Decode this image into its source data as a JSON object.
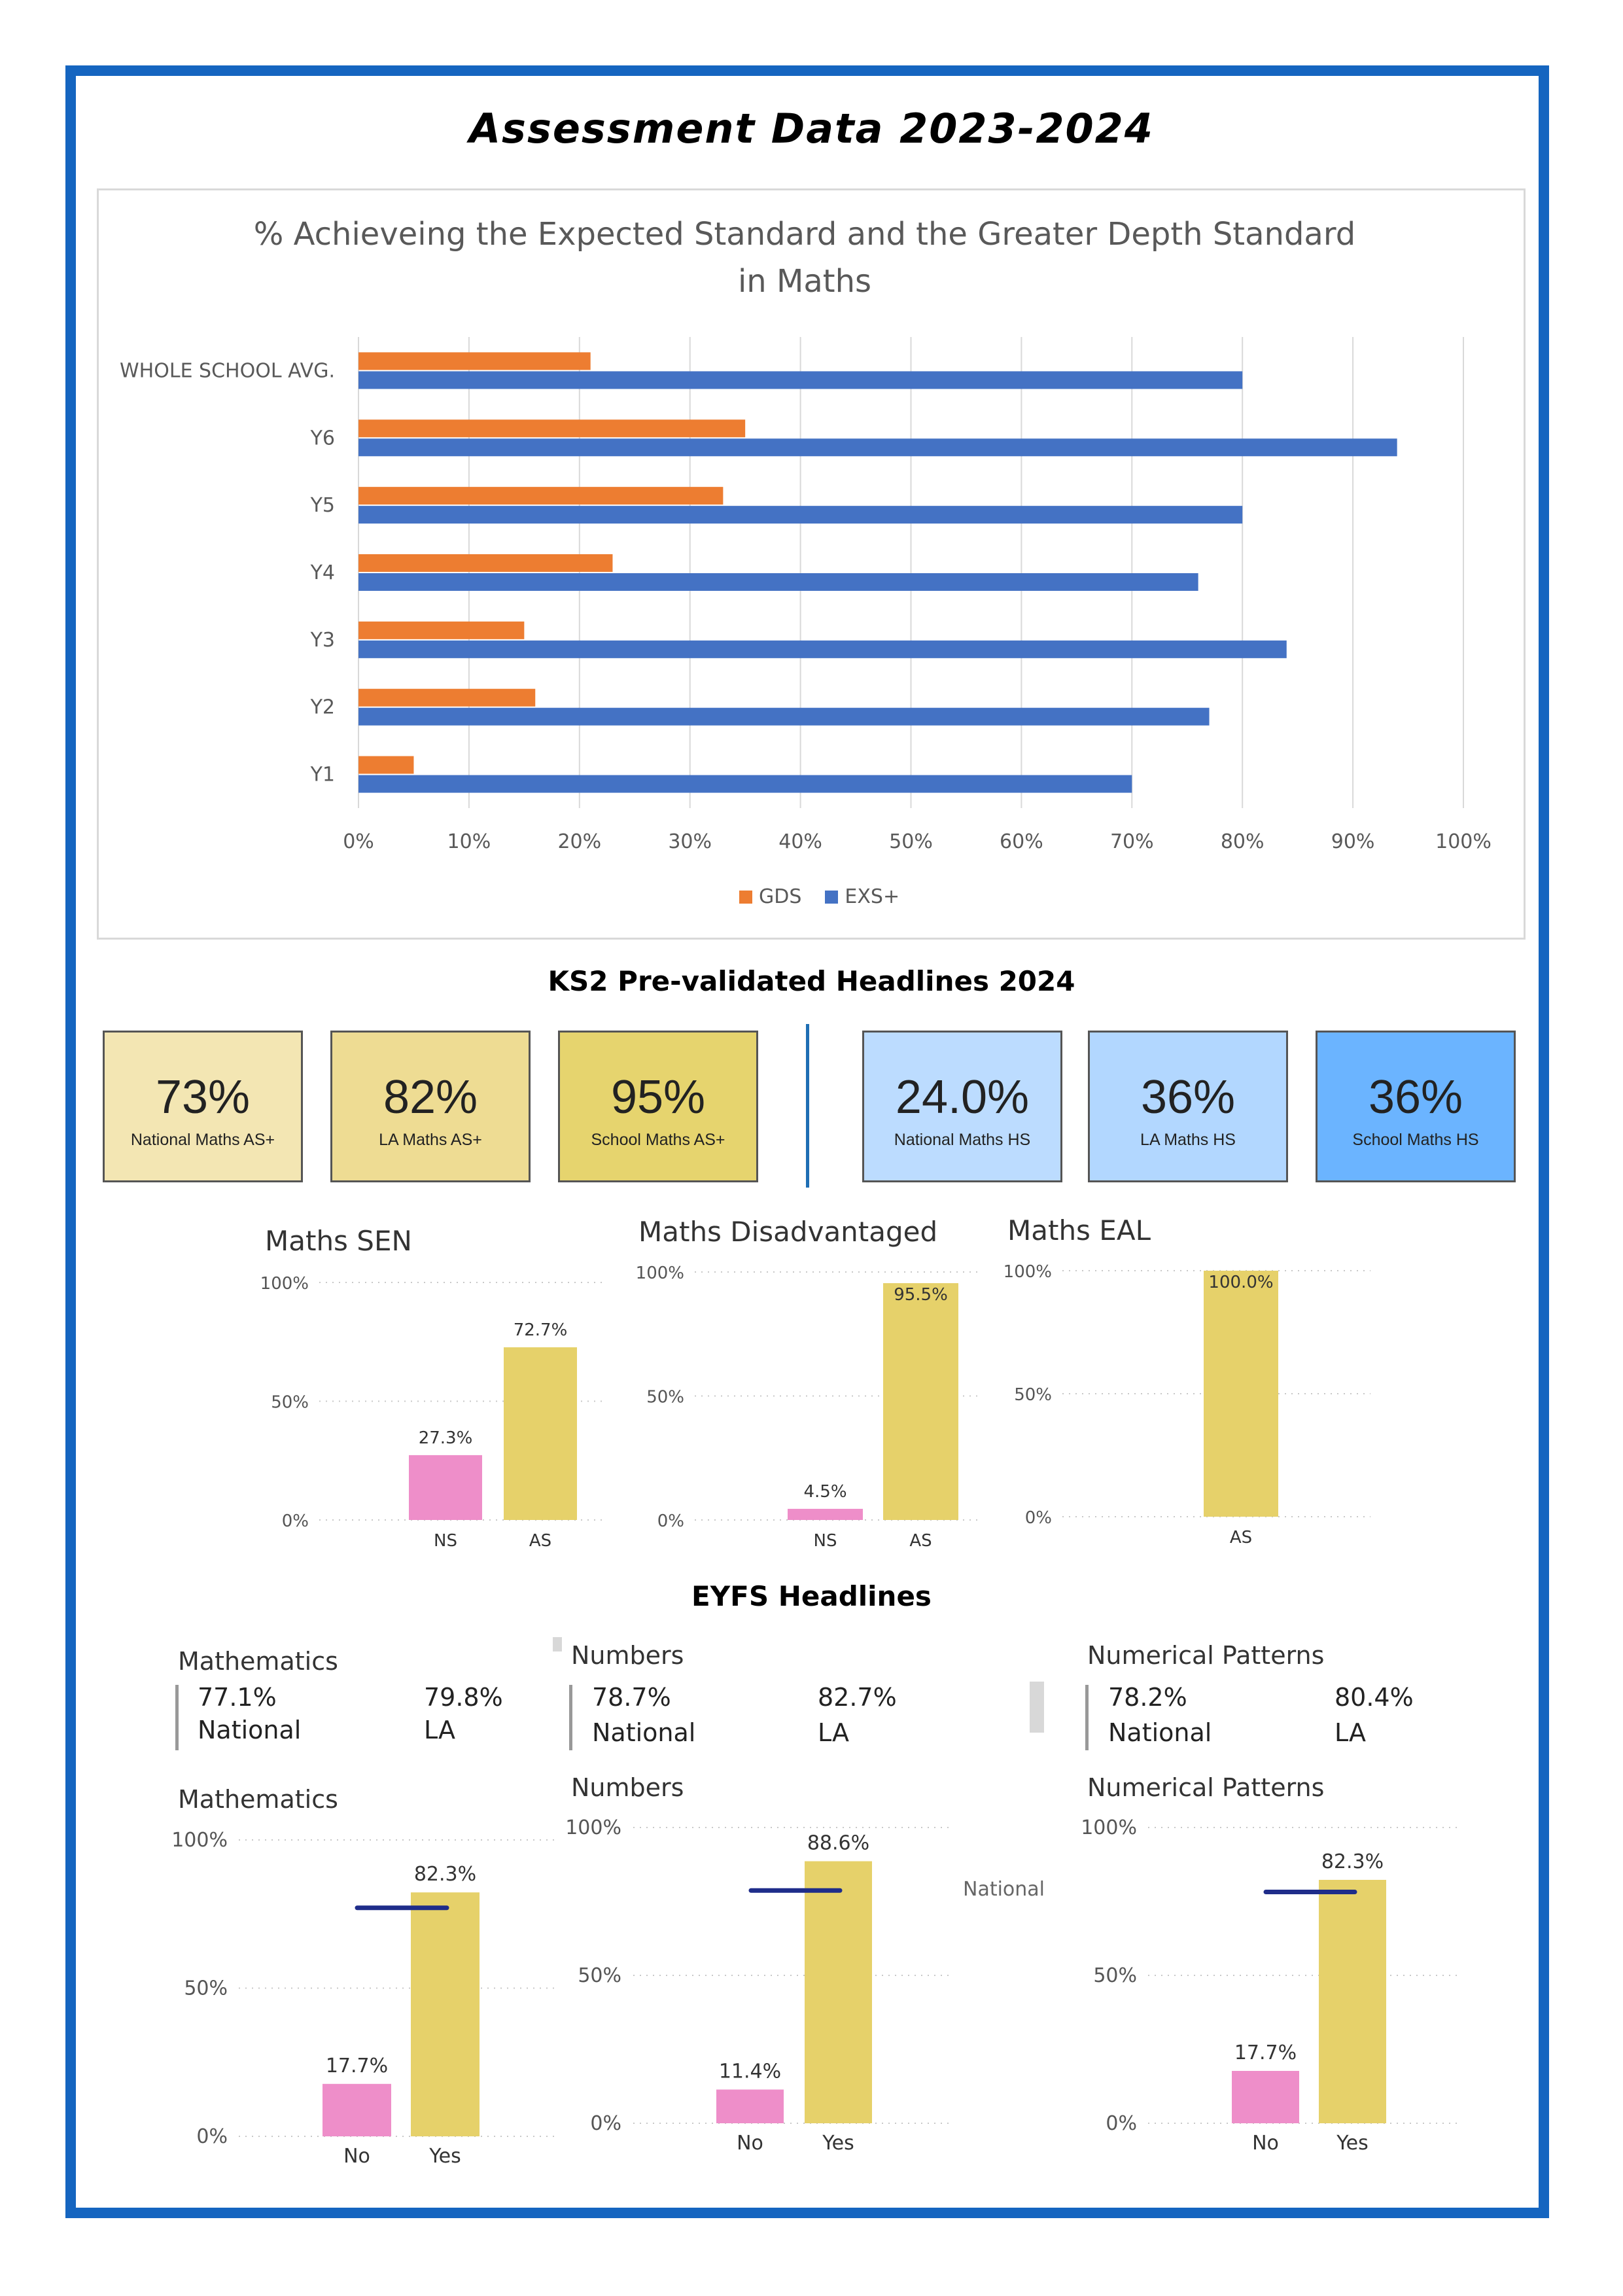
{
  "title": "Assessment Data 2023-2024",
  "colors": {
    "gds": "#ed7d31",
    "exs": "#4472c4",
    "ns": "#ee8ec9",
    "as": "#e6d16a",
    "national_line": "#1f2d8a",
    "frame": "#1565c0"
  },
  "chart_data": [
    {
      "type": "bar",
      "orientation": "horizontal",
      "title": "% Achieveing the Expected Standard and the Greater Depth Standard in Maths",
      "categories": [
        "WHOLE SCHOOL AVG.",
        "Y6",
        "Y5",
        "Y4",
        "Y3",
        "Y2",
        "Y1"
      ],
      "series": [
        {
          "name": "GDS",
          "values": [
            21,
            35,
            33,
            23,
            15,
            16,
            5
          ]
        },
        {
          "name": "EXS+",
          "values": [
            80,
            94,
            80,
            76,
            84,
            77,
            70
          ]
        }
      ],
      "xlim": [
        0,
        100
      ],
      "xticks": [
        "0%",
        "10%",
        "20%",
        "30%",
        "40%",
        "50%",
        "60%",
        "70%",
        "80%",
        "90%",
        "100%"
      ],
      "grid": true,
      "legend": "bottom-center"
    },
    {
      "type": "bar",
      "title": "Maths SEN",
      "categories": [
        "NS",
        "AS"
      ],
      "values": [
        27.3,
        72.7
      ],
      "data_labels": [
        "27.3%",
        "72.7%"
      ],
      "yticks": [
        "100%",
        "50%",
        "0%"
      ],
      "ylim": [
        0,
        100
      ]
    },
    {
      "type": "bar",
      "title": "Maths Disadvantaged",
      "categories": [
        "NS",
        "AS"
      ],
      "values": [
        4.5,
        95.5
      ],
      "data_labels": [
        "4.5%",
        "95.5%"
      ],
      "yticks": [
        "100%",
        "50%",
        "0%"
      ],
      "ylim": [
        0,
        100
      ]
    },
    {
      "type": "bar",
      "title": "Maths EAL",
      "categories": [
        "AS"
      ],
      "values": [
        100.0
      ],
      "data_labels": [
        "100.0%"
      ],
      "yticks": [
        "100%",
        "50%",
        "0%"
      ],
      "ylim": [
        0,
        100
      ]
    },
    {
      "type": "bar",
      "title": "Mathematics",
      "categories": [
        "No",
        "Yes"
      ],
      "values": [
        17.7,
        82.3
      ],
      "data_labels": [
        "17.7%",
        "82.3%"
      ],
      "reference_line": 77.1,
      "yticks": [
        "100%",
        "50%",
        "0%"
      ],
      "ylim": [
        0,
        100
      ]
    },
    {
      "type": "bar",
      "title": "Numbers",
      "categories": [
        "No",
        "Yes"
      ],
      "values": [
        11.4,
        88.6
      ],
      "data_labels": [
        "11.4%",
        "88.6%"
      ],
      "reference_line": 78.7,
      "yticks": [
        "100%",
        "50%",
        "0%"
      ],
      "ylim": [
        0,
        100
      ]
    },
    {
      "type": "bar",
      "title": "Numerical Patterns",
      "categories": [
        "No",
        "Yes"
      ],
      "values": [
        17.7,
        82.3
      ],
      "data_labels": [
        "17.7%",
        "82.3%"
      ],
      "reference_line": 78.2,
      "yticks": [
        "100%",
        "50%",
        "0%"
      ],
      "ylim": [
        0,
        100
      ]
    }
  ],
  "ks2": {
    "title": "KS2 Pre-validated Headlines 2024",
    "cards": [
      {
        "value": "73%",
        "label": "National Maths AS+",
        "color": "#f3e6b3"
      },
      {
        "value": "82%",
        "label": "LA Maths AS+",
        "color": "#eedc93"
      },
      {
        "value": "95%",
        "label": "School Maths AS+",
        "color": "#e6d46e"
      },
      {
        "value": "24.0%",
        "label": "National Maths HS",
        "color": "#bcdcff"
      },
      {
        "value": "36%",
        "label": "LA Maths HS",
        "color": "#b2d7ff"
      },
      {
        "value": "36%",
        "label": "School Maths HS",
        "color": "#6bb4ff"
      }
    ]
  },
  "eyfs": {
    "title": "EYFS Headlines",
    "stats": [
      {
        "title": "Mathematics",
        "national_value": "77.1%",
        "la_value": "79.8%",
        "national_label": "National",
        "la_label": "LA"
      },
      {
        "title": "Numbers",
        "national_value": "78.7%",
        "la_value": "82.7%",
        "national_label": "National",
        "la_label": "LA"
      },
      {
        "title": "Numerical Patterns",
        "national_value": "78.2%",
        "la_value": "80.4%",
        "national_label": "National",
        "la_label": "LA"
      }
    ],
    "floating_label": "National"
  }
}
